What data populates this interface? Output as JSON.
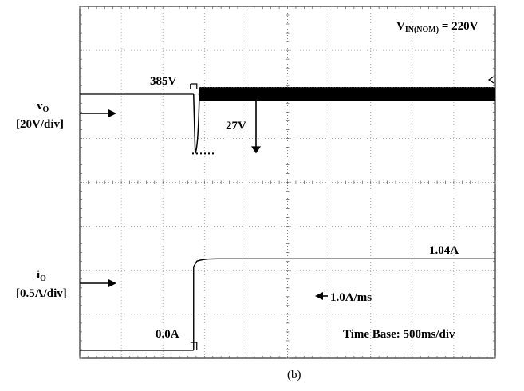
{
  "chart_data": {
    "type": "line",
    "title": "",
    "time_base": "Time Base: 500ms/div",
    "x_unit": "ms",
    "x_per_div": 500,
    "x_divisions": 10,
    "xlim": [
      0,
      5000
    ],
    "grid": true,
    "grid_style": "dotted, 10 x 8 divisions with minor ticks on center axes",
    "load_step_time_ms": 1370,
    "series": [
      {
        "name": "vO",
        "scale_label": "[20V/div]",
        "unit": "V",
        "steady_state_before": 385,
        "dip_magnitude": 27,
        "minimum": 358,
        "recovery_time_ms": 70,
        "ripple": "high-frequency ripple after step, approx. 10 V p-p",
        "color": "#000000"
      },
      {
        "name": "iO",
        "scale_label": "[0.5A/div]",
        "unit": "A",
        "value_before": 0.0,
        "value_after": 1.04,
        "slew_rate_label": "1.0A/ms",
        "color": "#000000"
      }
    ],
    "annotations": {
      "vin": "V",
      "vin_sub": "IN(NOM)",
      "vin_value": " = 220V",
      "v_before": "385V",
      "dip": "27V",
      "i_after": "1.04A",
      "i_before": "0.0A",
      "slew": "1.0A/ms",
      "v_name": "v",
      "v_sub": "O",
      "v_scale": "[20V/div]",
      "i_name": "i",
      "i_sub": "O",
      "i_scale": "[0.5A/div]"
    },
    "caption": "(b)"
  }
}
